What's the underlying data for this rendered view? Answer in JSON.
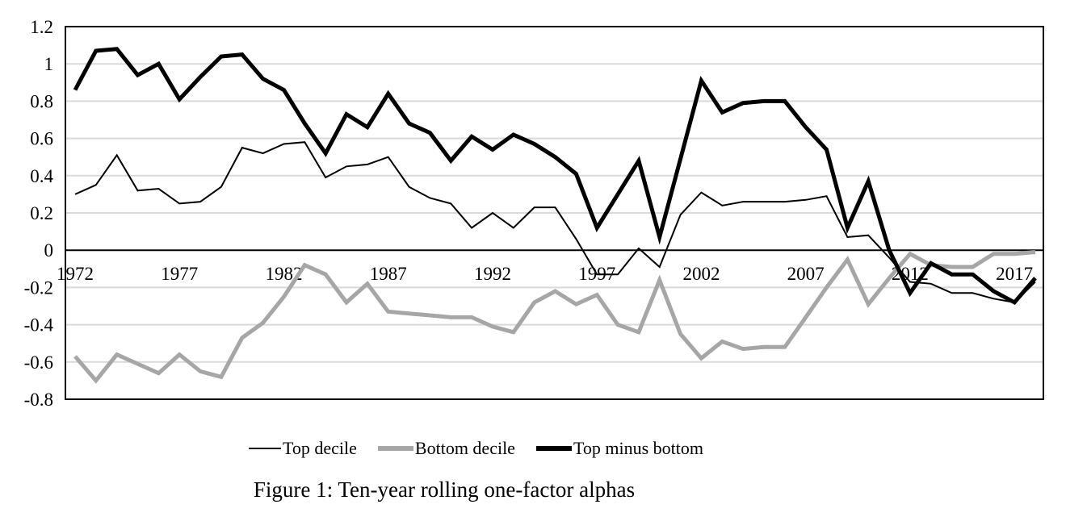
{
  "figure": {
    "caption": "Figure 1: Ten-year rolling one-factor alphas"
  },
  "legend": {
    "items": [
      {
        "label": "Top decile",
        "swatch_color": "#000000",
        "swatch_width": 40,
        "swatch_height": 2
      },
      {
        "label": "Bottom decile",
        "swatch_color": "#a6a6a6",
        "swatch_width": 44,
        "swatch_height": 6
      },
      {
        "label": "Top minus bottom",
        "swatch_color": "#000000",
        "swatch_width": 44,
        "swatch_height": 6
      }
    ]
  },
  "chart_data": {
    "type": "line",
    "title": "Figure 1: Ten-year rolling one-factor alphas",
    "xlabel": "",
    "ylabel": "",
    "ylim": [
      -0.8,
      1.2
    ],
    "grid": true,
    "zero_line": true,
    "legend_position": "bottom",
    "x": [
      1972,
      1973,
      1974,
      1975,
      1976,
      1977,
      1978,
      1979,
      1980,
      1981,
      1982,
      1983,
      1984,
      1985,
      1986,
      1987,
      1988,
      1989,
      1990,
      1991,
      1992,
      1993,
      1994,
      1995,
      1996,
      1997,
      1998,
      1999,
      2000,
      2001,
      2002,
      2003,
      2004,
      2005,
      2006,
      2007,
      2008,
      2009,
      2010,
      2011,
      2012,
      2013,
      2014,
      2015,
      2016,
      2017,
      2018
    ],
    "xticks": [
      {
        "label": "1972",
        "value": 1972
      },
      {
        "label": "1977",
        "value": 1977
      },
      {
        "label": "1982",
        "value": 1982
      },
      {
        "label": "1987",
        "value": 1987
      },
      {
        "label": "1992",
        "value": 1992
      },
      {
        "label": "1997",
        "value": 1997
      },
      {
        "label": "2002",
        "value": 2002
      },
      {
        "label": "2007",
        "value": 2007
      },
      {
        "label": "2012",
        "value": 2012
      },
      {
        "label": "2017",
        "value": 2017
      }
    ],
    "yticks": [
      {
        "label": "1.2",
        "value": 1.2
      },
      {
        "label": "1",
        "value": 1.0
      },
      {
        "label": "0.8",
        "value": 0.8
      },
      {
        "label": "0.6",
        "value": 0.6
      },
      {
        "label": "0.4",
        "value": 0.4
      },
      {
        "label": "0.2",
        "value": 0.2
      },
      {
        "label": "0",
        "value": 0.0
      },
      {
        "label": "-0.2",
        "value": -0.2
      },
      {
        "label": "-0.4",
        "value": -0.4
      },
      {
        "label": "-0.6",
        "value": -0.6
      },
      {
        "label": "-0.8",
        "value": -0.8
      }
    ],
    "series": [
      {
        "id": "top-decile",
        "name": "Top decile",
        "color": "#000000",
        "width": 2,
        "values": [
          0.3,
          0.35,
          0.51,
          0.32,
          0.33,
          0.25,
          0.26,
          0.34,
          0.55,
          0.52,
          0.57,
          0.58,
          0.39,
          0.45,
          0.46,
          0.5,
          0.34,
          0.28,
          0.25,
          0.12,
          0.2,
          0.12,
          0.23,
          0.23,
          0.06,
          -0.13,
          -0.13,
          0.01,
          -0.09,
          0.19,
          0.31,
          0.24,
          0.26,
          0.26,
          0.26,
          0.27,
          0.29,
          0.07,
          0.08,
          -0.04,
          -0.17,
          -0.18,
          -0.23,
          -0.23,
          -0.26,
          -0.28,
          -0.17
        ]
      },
      {
        "id": "bottom-decile",
        "name": "Bottom decile",
        "color": "#a6a6a6",
        "width": 5,
        "values": [
          -0.57,
          -0.7,
          -0.56,
          -0.61,
          -0.66,
          -0.56,
          -0.65,
          -0.68,
          -0.47,
          -0.39,
          -0.25,
          -0.08,
          -0.13,
          -0.28,
          -0.18,
          -0.33,
          -0.34,
          -0.35,
          -0.36,
          -0.36,
          -0.41,
          -0.44,
          -0.28,
          -0.22,
          -0.29,
          -0.24,
          -0.4,
          -0.44,
          -0.16,
          -0.45,
          -0.58,
          -0.49,
          -0.53,
          -0.52,
          -0.52,
          -0.36,
          -0.2,
          -0.05,
          -0.29,
          -0.15,
          -0.02,
          -0.08,
          -0.09,
          -0.09,
          -0.02,
          -0.02,
          -0.01
        ]
      },
      {
        "id": "top-minus-bottom",
        "name": "Top minus bottom",
        "color": "#000000",
        "width": 5,
        "values": [
          0.86,
          1.07,
          1.08,
          0.94,
          1.0,
          0.81,
          0.93,
          1.04,
          1.05,
          0.92,
          0.86,
          0.68,
          0.52,
          0.73,
          0.66,
          0.84,
          0.68,
          0.63,
          0.48,
          0.61,
          0.54,
          0.62,
          0.57,
          0.5,
          0.41,
          0.12,
          0.3,
          0.48,
          0.07,
          0.49,
          0.91,
          0.74,
          0.79,
          0.8,
          0.8,
          0.66,
          0.54,
          0.12,
          0.37,
          0.0,
          -0.23,
          -0.07,
          -0.13,
          -0.13,
          -0.22,
          -0.28,
          -0.15
        ]
      }
    ]
  }
}
